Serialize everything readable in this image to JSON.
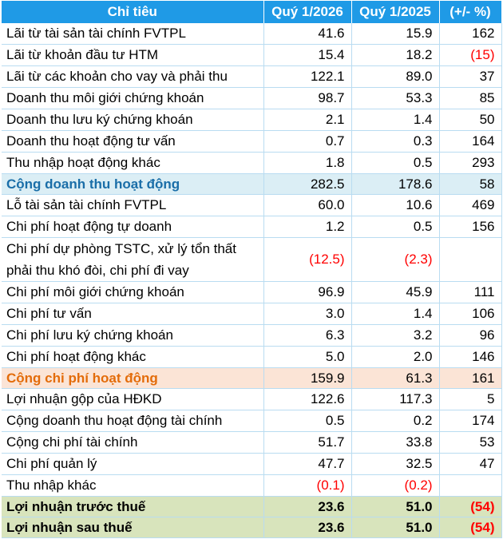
{
  "header": {
    "col_item": "Chỉ tiêu",
    "col_q2026": "Quý 1/2026",
    "col_q2025": "Quý 1/2025",
    "col_change": "(+/- %)"
  },
  "rows": [
    {
      "label": "Lãi từ tài sản tài chính FVTPL",
      "q2026": "41.6",
      "q2025": "15.9",
      "change": "162"
    },
    {
      "label": "Lãi từ khoản đầu tư HTM",
      "q2026": "15.4",
      "q2025": "18.2",
      "change": "(15)"
    },
    {
      "label": "Lãi từ các khoản cho vay và phải thu",
      "q2026": "122.1",
      "q2025": "89.0",
      "change": "37"
    },
    {
      "label": "Doanh thu môi giới chứng khoán",
      "q2026": "98.7",
      "q2025": "53.3",
      "change": "85"
    },
    {
      "label": "Doanh thu lưu ký chứng khoán",
      "q2026": "2.1",
      "q2025": "1.4",
      "change": "50"
    },
    {
      "label": "Doanh thu hoạt động tư vấn",
      "q2026": "0.7",
      "q2025": "0.3",
      "change": "164"
    },
    {
      "label": "Thu nhập hoạt động khác",
      "q2026": "1.8",
      "q2025": "0.5",
      "change": "293"
    },
    {
      "label": "Cộng doanh thu hoạt động",
      "q2026": "282.5",
      "q2025": "178.6",
      "change": "58"
    },
    {
      "label": "Lỗ tài sản tài chính FVTPL",
      "q2026": "60.0",
      "q2025": "10.6",
      "change": "469"
    },
    {
      "label": "Chi phí hoạt động tự doanh",
      "q2026": "1.2",
      "q2025": "0.5",
      "change": "156"
    },
    {
      "label": "Chi phí dự phòng TSTC, xử lý tổn thất phải thu khó đòi, chi phí đi vay",
      "q2026": "(12.5)",
      "q2025": "(2.3)",
      "change": ""
    },
    {
      "label": "Chi phí môi giới chứng khoán",
      "q2026": "96.9",
      "q2025": "45.9",
      "change": "111"
    },
    {
      "label": "Chi phí tư vấn",
      "q2026": "3.0",
      "q2025": "1.4",
      "change": "106"
    },
    {
      "label": "Chi phí lưu ký chứng khoán",
      "q2026": "6.3",
      "q2025": "3.2",
      "change": "96"
    },
    {
      "label": "Chi phí hoạt động khác",
      "q2026": "5.0",
      "q2025": "2.0",
      "change": "146"
    },
    {
      "label": "Cộng chi phí hoạt động",
      "q2026": "159.9",
      "q2025": "61.3",
      "change": "161"
    },
    {
      "label": "Lợi nhuận gộp của HĐKD",
      "q2026": "122.6",
      "q2025": "117.3",
      "change": "5"
    },
    {
      "label": "Cộng doanh thu hoạt động tài chính",
      "q2026": "0.5",
      "q2025": "0.2",
      "change": "174"
    },
    {
      "label": "Cộng chi phí tài chính",
      "q2026": "51.7",
      "q2025": "33.8",
      "change": "53"
    },
    {
      "label": "Chi phí quản lý",
      "q2026": "47.7",
      "q2025": "32.5",
      "change": "47"
    },
    {
      "label": "Thu nhập khác",
      "q2026": "(0.1)",
      "q2025": "(0.2)",
      "change": ""
    },
    {
      "label": "Lợi nhuận trước thuế",
      "q2026": "23.6",
      "q2025": "51.0",
      "change": "(54)"
    },
    {
      "label": "Lợi nhuận sau thuế",
      "q2026": "23.6",
      "q2025": "51.0",
      "change": "(54)"
    }
  ],
  "colors": {
    "header_bg": "#1f9ae6",
    "revenue_total_bg": "#dbeef5",
    "revenue_total_text": "#1a6ea8",
    "cost_total_bg": "#fbe4d6",
    "cost_total_text": "#e36c0a",
    "profit_bg": "#d8e4bc",
    "negative_text": "#ff0000"
  }
}
